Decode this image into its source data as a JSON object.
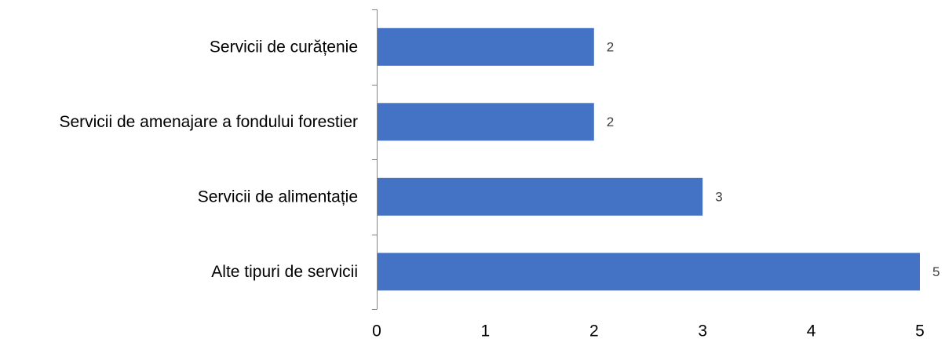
{
  "chart_data": {
    "type": "bar",
    "orientation": "horizontal",
    "categories": [
      "Servicii de curățenie",
      "Servicii de amenajare a fondului forestier",
      "Servicii de alimentație",
      "Alte tipuri de servicii"
    ],
    "values": [
      2,
      2,
      3,
      5
    ],
    "data_labels": [
      "2",
      "2",
      "3",
      "5"
    ],
    "xlim": [
      0,
      5
    ],
    "x_ticks": [
      "0",
      "1",
      "2",
      "3",
      "4",
      "5"
    ],
    "title": "",
    "xlabel": "",
    "ylabel": "",
    "grid": false,
    "legend": "none",
    "bar_color": "#4472C4",
    "axis_color": "#868686",
    "label_color": "#000000",
    "data_label_color": "#404040"
  }
}
